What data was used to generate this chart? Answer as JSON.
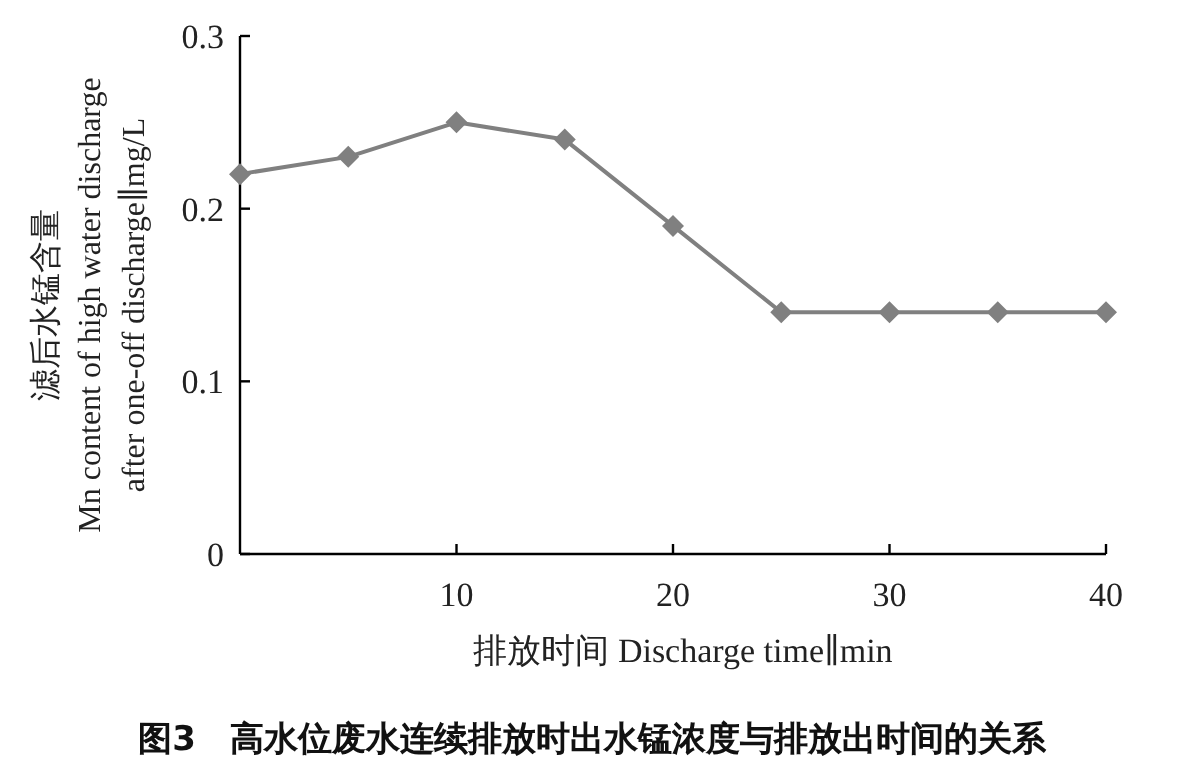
{
  "chart_data": {
    "type": "line",
    "title": "图3　高水位废水连续排放时出水锰浓度与排放出时间的关系",
    "xlabel": "排放时间 Discharge time∥min",
    "ylabel": "滤后水锰含量\nMn content of high water discharge\nafter one-off discharge∥mg/L",
    "x": [
      0,
      5,
      10,
      15,
      20,
      25,
      30,
      35,
      40
    ],
    "series": [
      {
        "color": "#808080",
        "values": [
          0.22,
          0.23,
          0.25,
          0.24,
          0.19,
          0.14,
          0.14,
          0.14,
          0.14
        ]
      }
    ],
    "xlim": [
      0,
      40
    ],
    "xticks": [
      10,
      20,
      30,
      40
    ],
    "ylim": [
      0,
      0.3
    ],
    "yticks": [
      {
        "value": 0,
        "label": "0"
      },
      {
        "value": 0.1,
        "label": "0.1"
      },
      {
        "value": 0.2,
        "label": "0.2"
      },
      {
        "value": 0.3,
        "label": "0.3"
      }
    ],
    "marker": "diamond",
    "line_style": "solid",
    "grid": false
  }
}
